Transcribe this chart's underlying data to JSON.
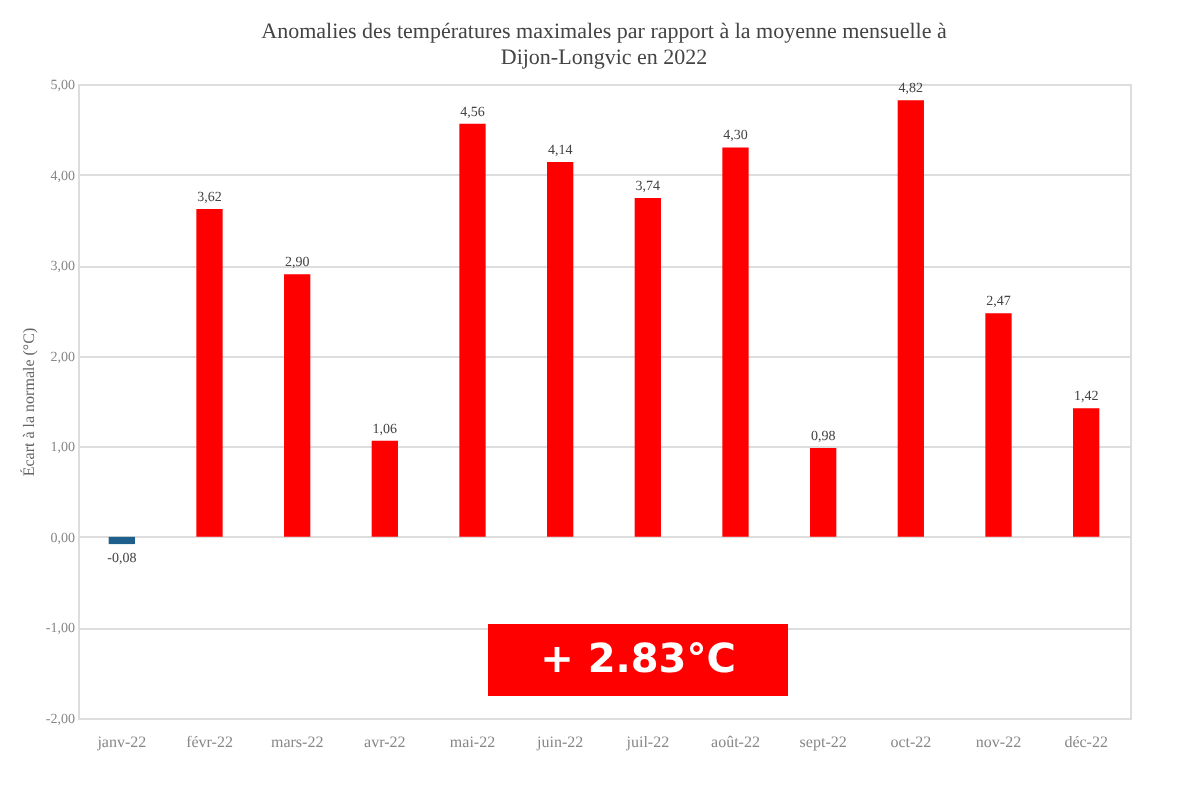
{
  "chart_data": {
    "type": "bar",
    "title": "Anomalies des températures maximales par rapport à la moyenne mensuelle à Dijon-Longvic en 2022",
    "ylabel": "Écart à la normale (°C)",
    "categories": [
      "janv-22",
      "févr-22",
      "mars-22",
      "avr-22",
      "mai-22",
      "juin-22",
      "juil-22",
      "août-22",
      "sept-22",
      "oct-22",
      "nov-22",
      "déc-22"
    ],
    "values": [
      -0.08,
      3.62,
      2.9,
      1.06,
      4.56,
      4.14,
      3.74,
      4.3,
      0.98,
      4.82,
      2.47,
      1.42
    ],
    "colors": [
      "#1f5f8b",
      "#ff0000",
      "#ff0000",
      "#ff0000",
      "#ff0000",
      "#ff0000",
      "#ff0000",
      "#ff0000",
      "#ff0000",
      "#ff0000",
      "#ff0000",
      "#ff0000"
    ],
    "value_labels": [
      "-0,08",
      "3,62",
      "2,90",
      "1,06",
      "4,56",
      "4,14",
      "3,74",
      "4,30",
      "0,98",
      "4,82",
      "2,47",
      "1,42"
    ],
    "ylim": [
      -2,
      5
    ],
    "yticks": [
      {
        "value": -2,
        "label": "-2,00"
      },
      {
        "value": -1,
        "label": "-1,00"
      },
      {
        "value": 0,
        "label": "0,00"
      },
      {
        "value": 1,
        "label": "1,00"
      },
      {
        "value": 2,
        "label": "2,00"
      },
      {
        "value": 3,
        "label": "3,00"
      },
      {
        "value": 4,
        "label": "4,00"
      },
      {
        "value": 5,
        "label": "5,00"
      }
    ],
    "grid": "y",
    "annotations": [
      "+ 2.83°C"
    ]
  }
}
